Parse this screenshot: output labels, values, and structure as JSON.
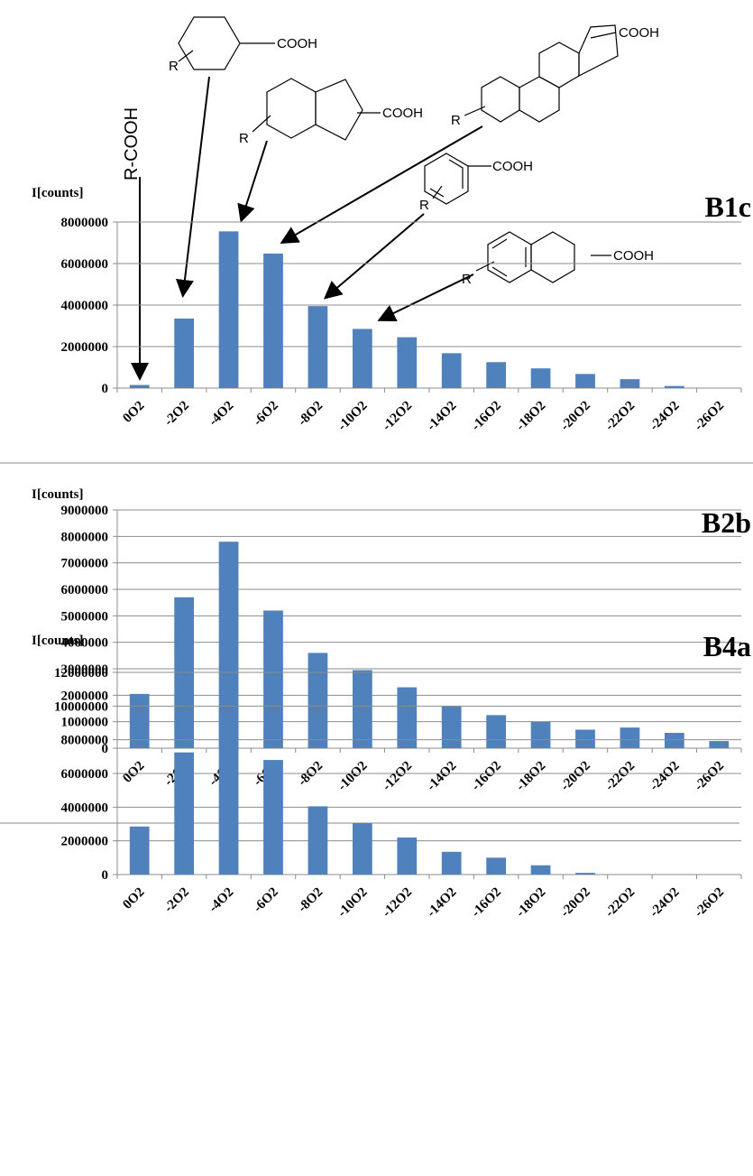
{
  "chart_data": [
    {
      "type": "bar",
      "title": "B1c",
      "y_label": "I[counts]",
      "color": "#4f81bd",
      "grid": true,
      "categories": [
        "0O2",
        "-2O2",
        "-4O2",
        "-6O2",
        "-8O2",
        "-10O2",
        "-12O2",
        "-14O2",
        "-16O2",
        "-18O2",
        "-20O2",
        "-22O2",
        "-24O2",
        "-26O2"
      ],
      "values": [
        150000,
        3350000,
        7550000,
        6480000,
        3950000,
        2850000,
        2450000,
        1680000,
        1250000,
        950000,
        680000,
        430000,
        100000,
        0
      ],
      "ylim": [
        0,
        8000000
      ],
      "yticks": [
        0,
        2000000,
        4000000,
        6000000,
        8000000
      ],
      "annotations": [
        "R-COOH",
        "COOH",
        "R",
        "COOH",
        "R",
        "COOH",
        "R",
        "COOH",
        "R",
        "COOH",
        "R"
      ]
    },
    {
      "type": "bar",
      "title": "B2b",
      "y_label": "I[counts]",
      "color": "#4f81bd",
      "grid": true,
      "categories": [
        "0O2",
        "-2O2",
        "-4O2",
        "-6O2",
        "-8O2",
        "-10O2",
        "-12O2",
        "-14O2",
        "-16O2",
        "-18O2",
        "-20O2",
        "-22O2",
        "-24O2",
        "-26O2"
      ],
      "values": [
        2050000,
        5700000,
        7800000,
        5200000,
        3600000,
        2950000,
        2300000,
        1600000,
        1250000,
        1000000,
        700000,
        780000,
        580000,
        270000
      ],
      "ylim": [
        0,
        9000000
      ],
      "yticks": [
        0,
        1000000,
        2000000,
        3000000,
        4000000,
        5000000,
        6000000,
        7000000,
        8000000,
        9000000
      ]
    },
    {
      "type": "bar",
      "title": "B4a",
      "y_label": "I[counts]",
      "color": "#4f81bd",
      "grid": true,
      "categories": [
        "0O2",
        "-2O2",
        "-4O2",
        "-6O2",
        "-8O2",
        "-10O2",
        "-12O2",
        "-14O2",
        "-16O2",
        "-18O2",
        "-20O2",
        "-22O2",
        "-24O2",
        "-26O2"
      ],
      "values": [
        2850000,
        7250000,
        9900000,
        6800000,
        4050000,
        3050000,
        2200000,
        1350000,
        1000000,
        550000,
        100000,
        0,
        0,
        0
      ],
      "ylim": [
        0,
        12000000
      ],
      "yticks": [
        0,
        2000000,
        4000000,
        6000000,
        8000000,
        10000000,
        12000000
      ]
    }
  ]
}
